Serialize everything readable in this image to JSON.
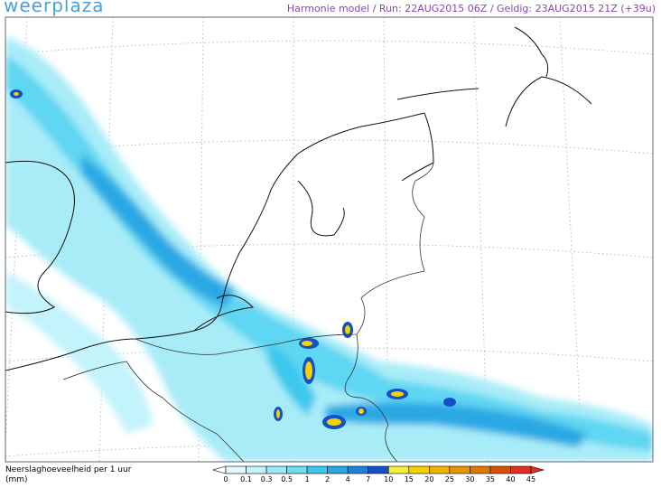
{
  "header": {
    "logo": "weerplaza",
    "info": "Harmonie model / Run: 22AUG2015 06Z / Geldig: 23AUG2015 21Z (+39u)"
  },
  "legend": {
    "title": "Neerslaghoeveelheid per 1 uur",
    "unit": "(mm)",
    "ticks": [
      0,
      0.1,
      0.3,
      0.5,
      1,
      2,
      4,
      7,
      10,
      15,
      20,
      25,
      30,
      35,
      40,
      45
    ],
    "colors": [
      "#ffffff",
      "#e6fafd",
      "#c3f3fb",
      "#9eeaf7",
      "#6fdcf2",
      "#3cc8ee",
      "#2aa8e4",
      "#2080d8",
      "#1450c8",
      "#f5f03c",
      "#f5d200",
      "#f0b400",
      "#e89600",
      "#e07800",
      "#d85000",
      "#e03020"
    ]
  }
}
